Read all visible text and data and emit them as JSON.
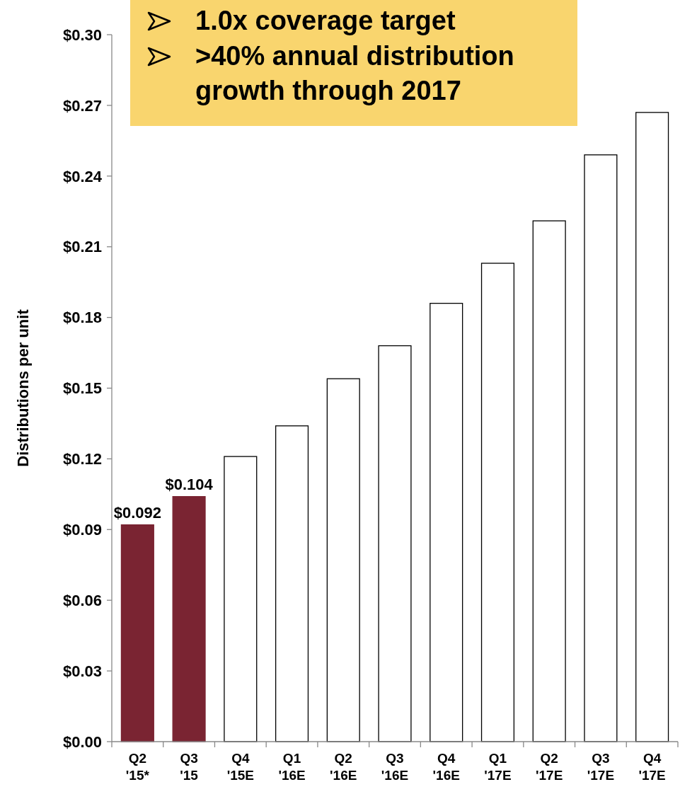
{
  "chart_data": {
    "type": "bar",
    "ylabel": "Distributions per unit",
    "categories": [
      "Q2 '15*",
      "Q3 '15",
      "Q4 '15E",
      "Q1 '16E",
      "Q2 '16E",
      "Q3 '16E",
      "Q4 '16E",
      "Q1 '17E",
      "Q2 '17E",
      "Q3 '17E",
      "Q4 '17E"
    ],
    "values": [
      0.092,
      0.104,
      0.121,
      0.134,
      0.154,
      0.168,
      0.186,
      0.203,
      0.221,
      0.249,
      0.267
    ],
    "colors": [
      "#7a2432",
      "#7a2432",
      "#ffffff",
      "#ffffff",
      "#ffffff",
      "#ffffff",
      "#ffffff",
      "#ffffff",
      "#ffffff",
      "#ffffff",
      "#ffffff"
    ],
    "value_labels": [
      "$0.092",
      "$0.104",
      null,
      null,
      null,
      null,
      null,
      null,
      null,
      null,
      null
    ],
    "ylim": [
      0,
      0.3
    ],
    "yticks": [
      {
        "value": 0,
        "label": "$0.00"
      },
      {
        "value": 0.03,
        "label": "$0.03"
      },
      {
        "value": 0.06,
        "label": "$0.06"
      },
      {
        "value": 0.09,
        "label": "$0.09"
      },
      {
        "value": 0.12,
        "label": "$0.12"
      },
      {
        "value": 0.15,
        "label": "$0.15"
      },
      {
        "value": 0.18,
        "label": "$0.18"
      },
      {
        "value": 0.21,
        "label": "$0.21"
      },
      {
        "value": 0.24,
        "label": "$0.24"
      },
      {
        "value": 0.27,
        "label": "$0.27"
      },
      {
        "value": 0.3,
        "label": "$0.30"
      }
    ],
    "annotations": [
      "1.0x coverage target",
      ">40% annual distribution growth through 2017"
    ],
    "grid": false
  }
}
